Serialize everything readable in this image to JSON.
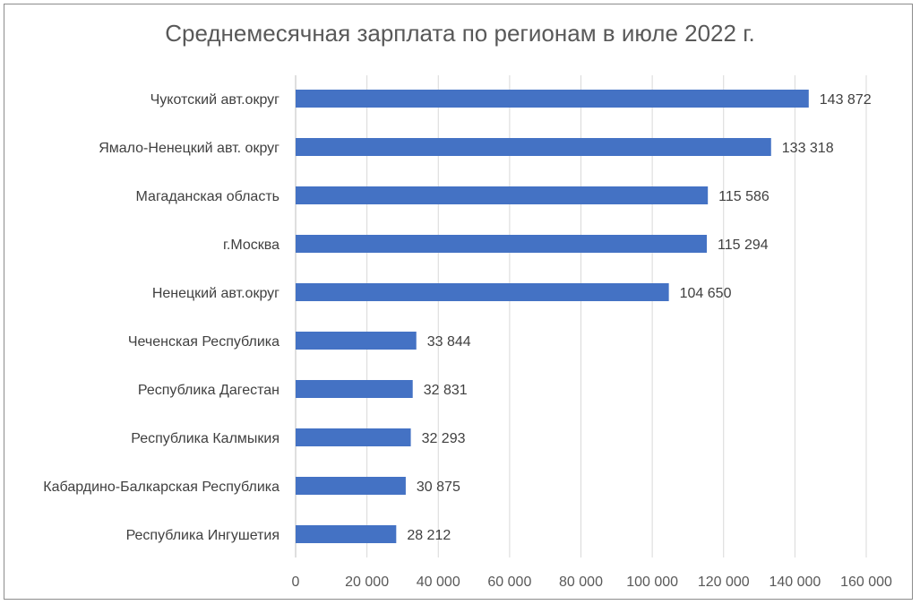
{
  "chart_data": {
    "type": "bar",
    "orientation": "horizontal",
    "title": "Среднемесячная зарплата по регионам в июле 2022 г.",
    "xlabel": "",
    "ylabel": "",
    "categories": [
      "Чукотский авт.округ",
      "Ямало-Ненецкий авт. округ",
      "Магаданская область",
      "г.Москва",
      "Ненецкий авт.округ",
      "Чеченская Республика",
      "Республика Дагестан",
      "Республика Калмыкия",
      "Кабардино-Балкарская Республика",
      "Республика Ингушетия"
    ],
    "values": [
      143872,
      133318,
      115586,
      115294,
      104650,
      33844,
      32831,
      32293,
      30875,
      28212
    ],
    "value_labels": [
      "143 872",
      "133 318",
      "115 586",
      "115 294",
      "104 650",
      "33 844",
      "32 831",
      "32 293",
      "30 875",
      "28 212"
    ],
    "xlim": [
      0,
      160000
    ],
    "ticks": [
      0,
      20000,
      40000,
      60000,
      80000,
      100000,
      120000,
      140000,
      160000
    ],
    "tick_labels": [
      "0",
      "20 000",
      "40 000",
      "60 000",
      "80 000",
      "100 000",
      "120 000",
      "140 000",
      "160 000"
    ],
    "grid": true,
    "legend": "none",
    "bar_color": "#4472c4",
    "grid_color": "#d9d9d9"
  }
}
